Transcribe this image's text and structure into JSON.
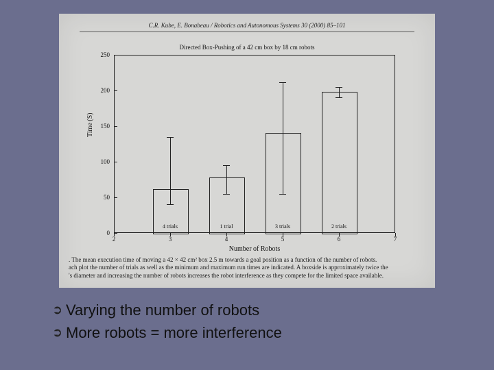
{
  "slide": {
    "background_color": "#6b6e8e"
  },
  "figure": {
    "panel_bg": "#d7d7d5",
    "citation": "C.R. Kube, E. Bonabeau / Robotics and Autonomous Systems 30 (2000) 85–101",
    "chart_title": "Directed Box-Pushing of a 42 cm box by 18 cm robots",
    "ylabel": "Time (S)",
    "xlabel": "Number of Robots",
    "ylim": [
      0,
      250
    ],
    "ytick_step": 50,
    "yticks": [
      "0",
      "50",
      "100",
      "150",
      "200",
      "250"
    ],
    "xlim": [
      2,
      7
    ],
    "xticks": [
      "2",
      "3",
      "4",
      "5",
      "6",
      "7"
    ],
    "bar_width_units": 0.6,
    "axis_color": "#222222",
    "bar_border_color": "#222222",
    "bar_fill": "transparent",
    "data": [
      {
        "x": 3,
        "mean": 62,
        "min": 40,
        "max": 135,
        "trials_label": "4 trials"
      },
      {
        "x": 4,
        "mean": 78,
        "min": 55,
        "max": 95,
        "trials_label": "1 trial"
      },
      {
        "x": 5,
        "mean": 140,
        "min": 55,
        "max": 212,
        "trials_label": "3 trials"
      },
      {
        "x": 6,
        "mean": 198,
        "min": 190,
        "max": 205,
        "trials_label": "2 trials"
      }
    ],
    "caption_lines": [
      ". The mean execution time of moving a 42 × 42 cm² box 2.5 m towards a goal position as a function of the number of robots.",
      "ach plot the number of trials as well as the minimum and maximum run times are indicated. A boxside is approximately twice the",
      "'s diameter and increasing the number of robots increases the robot interference as they compete for the limited space available."
    ]
  },
  "bullets": [
    "Varying the number of robots",
    "More robots = more interference"
  ],
  "bullet_glyph": "➲"
}
